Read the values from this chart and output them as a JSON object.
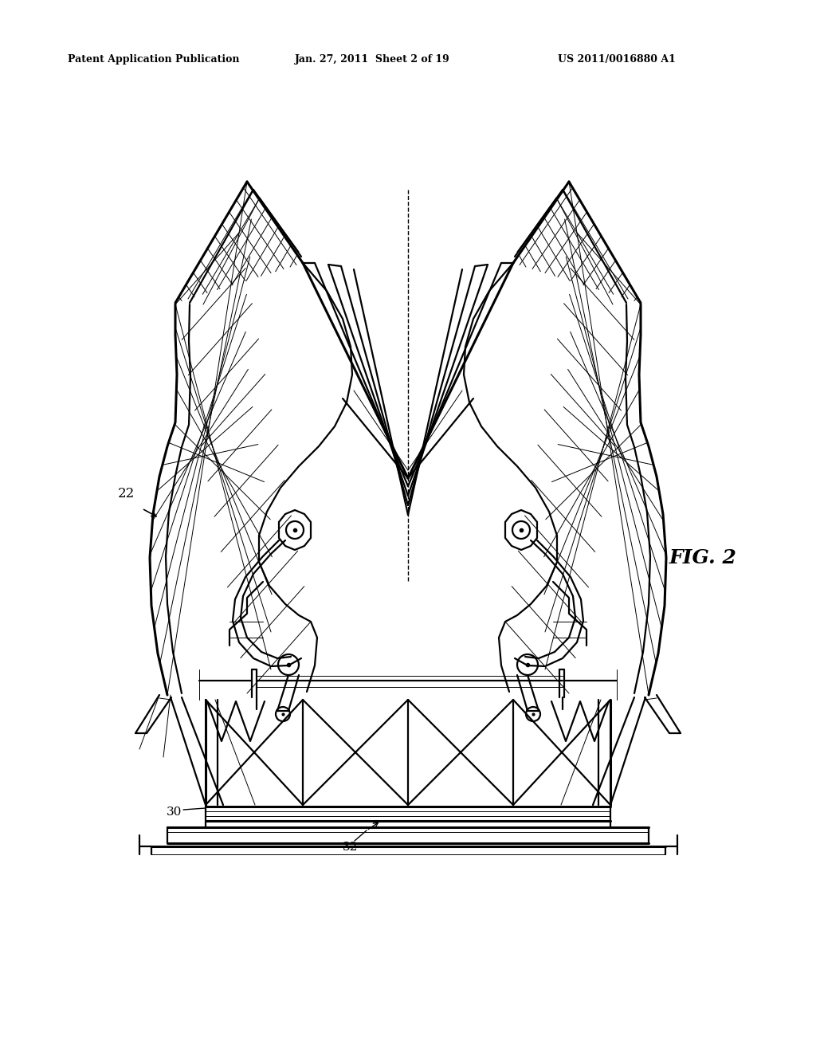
{
  "background_color": "#ffffff",
  "header_text": "Patent Application Publication",
  "header_date": "Jan. 27, 2011  Sheet 2 of 19",
  "header_number": "US 2011/0016880 A1",
  "fig_label": "FIG. 2",
  "label_22": "22",
  "label_30": "30",
  "label_32": "32",
  "line_color": "#000000",
  "lw_main": 1.6,
  "lw_thin": 0.7,
  "lw_thick": 2.2
}
